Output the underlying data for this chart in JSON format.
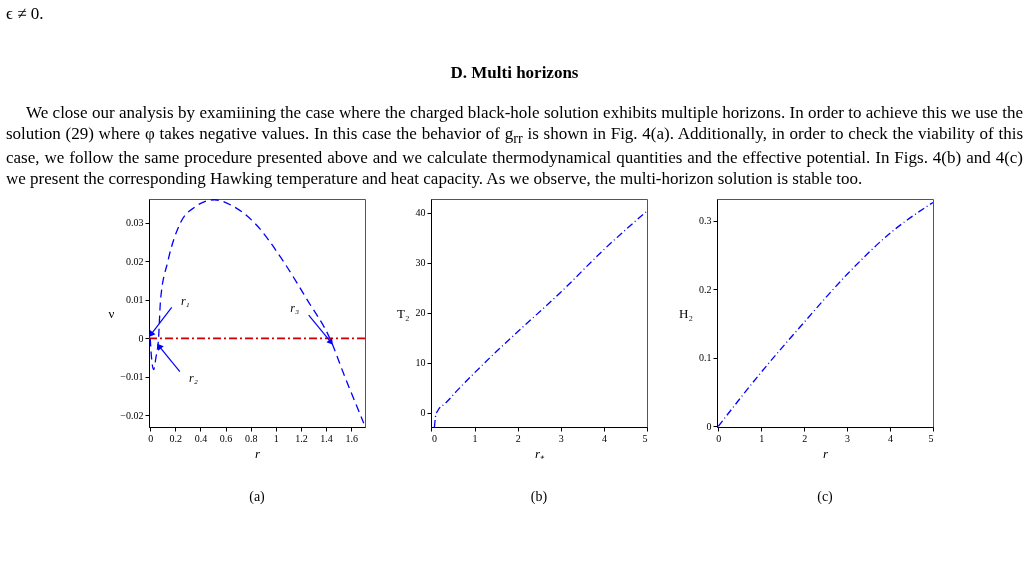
{
  "chart_data": [
    {
      "type": "line",
      "title": "(a)",
      "xlabel": "r",
      "ylabel": "ν",
      "annotations": [
        "ϵ ≠ 0.",
        "D.   Multi horizons",
        "We close our analysis by examiining the case where the charged black-hole solution exhibits multiple horizons. In order to achieve this we use the solution (29) where φ takes negative values. In this case the behavior of g$_{rr}$ is shown in Fig. 4(a). Additionally, in order to check the viability of this case, we follow the same procedure presented above and we calculate thermodynamical quantities and the effective potential. In Figs. 4(b) and 4(c) we present the corresponding Hawking temperature and heat capacity. As we observe, the multi-horizon solution is stable too.",
        {
          "text": "r₁",
          "x": 0.005,
          "y": 0.001
        },
        {
          "text": "r₂",
          "x": 0.07,
          "y": -0.002
        },
        {
          "text": "r₃",
          "x": 1.44,
          "y": -0.001
        }
      ],
      "xlim": [
        -0.01,
        1.71
      ],
      "ylim": [
        -0.023,
        0.0362
      ],
      "xticks": [
        0,
        0.2,
        0.4,
        0.6,
        0.8,
        1,
        1.2,
        1.4,
        1.6
      ],
      "yticks": [
        {
          "value": -0.02,
          "label": "−0.02"
        },
        {
          "value": -0.01,
          "label": "−0.01"
        },
        0,
        0.01,
        0.02,
        0.03
      ],
      "ref_lines": [
        {
          "axis": "y",
          "value": 0,
          "label": null,
          "color": "#cc0000",
          "line_style": "dashed"
        }
      ],
      "line_style": "dashed",
      "series": [
        {
          "color": "#0000ff",
          "x": [
            0,
            0.01,
            0.027,
            0.045,
            0.066,
            0.082,
            0.14,
            0.24,
            0.35,
            0.51,
            0.65,
            0.83,
            1.06,
            1.25,
            1.43,
            1.55,
            1.7
          ],
          "values": [
            0,
            -0.005,
            -0.0081,
            -0.005,
            0,
            0.01,
            0.02,
            0.03,
            0.034,
            0.036,
            0.0345,
            0.03,
            0.02,
            0.01,
            0,
            -0.01,
            -0.022
          ]
        }
      ]
    },
    {
      "type": "line",
      "title": "(b)",
      "xlabel": "r₊",
      "ylabel": "T₂",
      "xlim": [
        -0.01,
        5
      ],
      "ylim": [
        -2.8,
        42.7
      ],
      "xticks": [
        0,
        1,
        2,
        3,
        4,
        5
      ],
      "yticks": [
        0,
        10,
        20,
        30,
        40
      ],
      "line_style": "dotted",
      "series": [
        {
          "color": "#0000ff",
          "x": [
            0.07,
            0.1,
            0.15,
            0.32,
            0.6,
            1.01,
            1.5,
            2,
            3,
            4,
            5
          ],
          "values": [
            -2.8,
            -0.5,
            0.5,
            1.9,
            4.5,
            8.1,
            12.2,
            16.2,
            24.1,
            32.6,
            40.3
          ]
        }
      ]
    },
    {
      "type": "line",
      "title": "(c)",
      "xlabel": "r",
      "ylabel": "H₂",
      "xlim": [
        -0.03,
        5
      ],
      "ylim": [
        -0.001,
        0.332
      ],
      "xticks": [
        0,
        1,
        2,
        3,
        4,
        5
      ],
      "yticks": [
        0,
        0.1,
        0.2,
        0.3
      ],
      "line_style": "dotted",
      "series": [
        {
          "color": "#0000ff",
          "x": [
            0,
            1,
            2,
            3,
            4,
            5
          ],
          "values": [
            0,
            0.079,
            0.152,
            0.222,
            0.282,
            0.327
          ]
        }
      ]
    }
  ]
}
